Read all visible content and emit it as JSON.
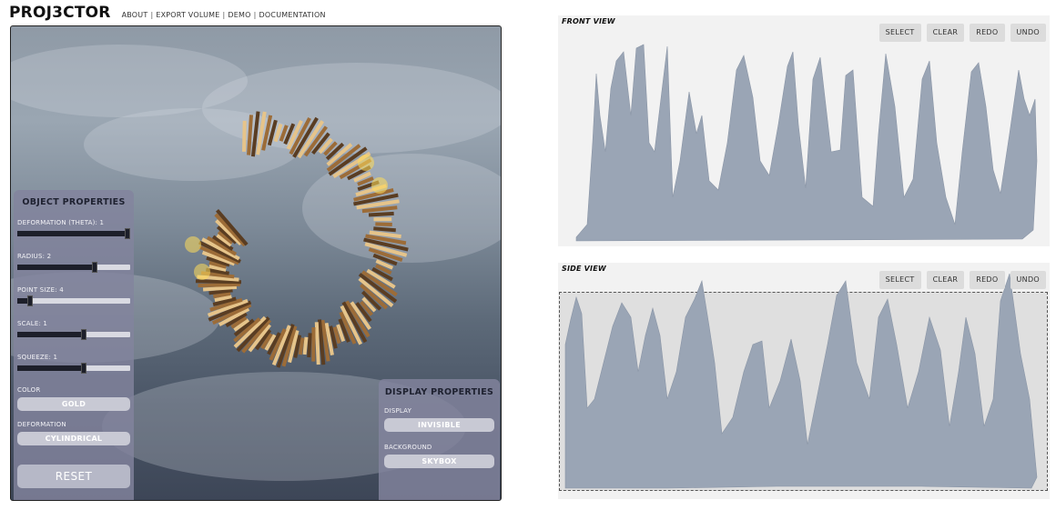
{
  "header": {
    "logo": "PROJ3CTOR",
    "nav": [
      "ABOUT",
      "EXPORT VOLUME",
      "DEMO",
      "DOCUMENTATION"
    ]
  },
  "object_properties": {
    "title": "OBJECT PROPERTIES",
    "sliders": [
      {
        "label": "DEFORMATION (THETA): 1",
        "value": 1.0
      },
      {
        "label": "RADIUS: 2",
        "value": 0.7
      },
      {
        "label": "POINT SIZE: 4",
        "value": 0.1
      },
      {
        "label": "SCALE: 1",
        "value": 0.6
      },
      {
        "label": "SQUEEZE: 1",
        "value": 0.6
      }
    ],
    "color_label": "COLOR",
    "color_value": "GOLD",
    "deformation_label": "DEFORMATION",
    "deformation_value": "CYLINDRICAL",
    "reset_label": "RESET"
  },
  "display_properties": {
    "title": "DISPLAY PROPERTIES",
    "display_label": "DISPLAY",
    "display_value": "INVISIBLE",
    "background_label": "BACKGROUND",
    "background_value": "SKYBOX"
  },
  "front_view": {
    "title": "FRONT VIEW",
    "buttons": [
      "SELECT",
      "CLEAR",
      "REDO",
      "UNDO"
    ]
  },
  "side_view": {
    "title": "SIDE VIEW",
    "buttons": [
      "SELECT",
      "CLEAR",
      "REDO",
      "UNDO"
    ]
  },
  "colors": {
    "waveform": "#9aa5b5",
    "panel": "#82849e",
    "gold": "#b98a4a"
  }
}
